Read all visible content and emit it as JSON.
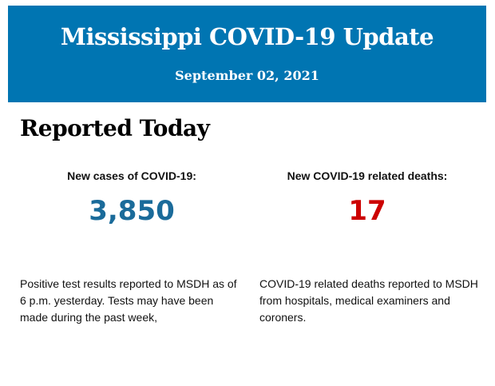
{
  "header": {
    "title": "Mississippi COVID-19 Update",
    "date": "September 02, 2021",
    "background": "#0075b2"
  },
  "section": {
    "title": "Reported Today"
  },
  "cases": {
    "label": "New cases of COVID-19:",
    "value": "3,850",
    "color": "#1a6b9a",
    "description": "Positive test results reported to MSDH as of 6 p.m. yesterday. Tests may have been made during the past week,"
  },
  "deaths": {
    "label": "New COVID-19 related deaths:",
    "value": "17",
    "color": "#cc0000",
    "description": "COVID-19 related deaths reported to MSDH from hospitals, medical examiners and coroners."
  }
}
